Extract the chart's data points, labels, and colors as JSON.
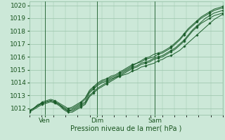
{
  "bg_color": "#cce8d8",
  "grid_color": "#99c4aa",
  "line_color": "#1a5c2a",
  "marker_color": "#1a5c2a",
  "xlabel": "Pression niveau de la mer( hPa )",
  "xlabel_color": "#1a5520",
  "tick_color": "#1a5520",
  "ylim": [
    1011.5,
    1020.3
  ],
  "yticks": [
    1012,
    1013,
    1014,
    1015,
    1016,
    1017,
    1018,
    1019,
    1020
  ],
  "xtick_labels": [
    "Ven",
    "Dim",
    "Sam"
  ],
  "xtick_positions": [
    0.08,
    0.35,
    0.65
  ],
  "vline_positions": [
    0.08,
    0.35,
    0.65
  ],
  "series": [
    [
      1011.8,
      1012.0,
      1012.2,
      1012.4,
      1012.5,
      1012.6,
      1012.5,
      1012.3,
      1012.0,
      1011.8,
      1011.9,
      1012.1,
      1012.3,
      1012.5,
      1013.2,
      1013.5,
      1013.8,
      1014.0,
      1014.1,
      1014.3,
      1014.4,
      1014.5,
      1014.6,
      1014.7,
      1014.9,
      1015.0,
      1015.2,
      1015.3,
      1015.4,
      1015.5,
      1015.7,
      1015.8,
      1016.0,
      1016.1,
      1016.3,
      1016.5,
      1016.8,
      1017.1,
      1017.4,
      1017.7,
      1018.0,
      1018.3,
      1018.6,
      1018.9,
      1019.1,
      1019.3
    ],
    [
      1011.8,
      1012.0,
      1012.3,
      1012.4,
      1012.5,
      1012.6,
      1012.5,
      1012.3,
      1012.0,
      1011.8,
      1011.8,
      1012.0,
      1012.2,
      1012.4,
      1013.0,
      1013.3,
      1013.6,
      1013.8,
      1014.0,
      1014.2,
      1014.4,
      1014.6,
      1014.8,
      1015.0,
      1015.2,
      1015.3,
      1015.5,
      1015.6,
      1015.7,
      1015.9,
      1016.0,
      1016.1,
      1016.3,
      1016.5,
      1016.7,
      1017.0,
      1017.3,
      1017.7,
      1018.1,
      1018.4,
      1018.7,
      1019.0,
      1019.2,
      1019.4,
      1019.5,
      1019.6
    ],
    [
      1011.7,
      1011.9,
      1012.1,
      1012.3,
      1012.4,
      1012.5,
      1012.4,
      1012.2,
      1011.9,
      1011.7,
      1011.7,
      1011.9,
      1012.1,
      1012.3,
      1012.9,
      1013.2,
      1013.5,
      1013.7,
      1013.9,
      1014.1,
      1014.3,
      1014.5,
      1014.7,
      1014.9,
      1015.1,
      1015.2,
      1015.4,
      1015.5,
      1015.6,
      1015.8,
      1015.9,
      1016.0,
      1016.2,
      1016.4,
      1016.6,
      1016.9,
      1017.2,
      1017.6,
      1018.0,
      1018.3,
      1018.6,
      1018.8,
      1019.0,
      1019.2,
      1019.3,
      1019.4
    ],
    [
      1011.8,
      1012.0,
      1012.2,
      1012.4,
      1012.5,
      1012.6,
      1012.5,
      1012.3,
      1012.1,
      1011.9,
      1012.0,
      1012.2,
      1012.4,
      1012.7,
      1013.3,
      1013.6,
      1013.9,
      1014.1,
      1014.2,
      1014.4,
      1014.5,
      1014.7,
      1014.9,
      1015.1,
      1015.3,
      1015.5,
      1015.6,
      1015.8,
      1015.9,
      1016.0,
      1016.2,
      1016.3,
      1016.5,
      1016.7,
      1017.0,
      1017.3,
      1017.7,
      1018.1,
      1018.4,
      1018.7,
      1019.0,
      1019.2,
      1019.4,
      1019.6,
      1019.7,
      1019.8
    ],
    [
      1011.8,
      1012.0,
      1012.2,
      1012.5,
      1012.6,
      1012.7,
      1012.6,
      1012.4,
      1012.2,
      1012.0,
      1012.1,
      1012.3,
      1012.5,
      1012.8,
      1013.4,
      1013.7,
      1014.0,
      1014.2,
      1014.3,
      1014.5,
      1014.6,
      1014.8,
      1015.0,
      1015.2,
      1015.4,
      1015.5,
      1015.7,
      1015.9,
      1016.0,
      1016.2,
      1016.3,
      1016.4,
      1016.6,
      1016.8,
      1017.1,
      1017.4,
      1017.8,
      1018.2,
      1018.5,
      1018.8,
      1019.1,
      1019.3,
      1019.5,
      1019.7,
      1019.8,
      1019.9
    ]
  ]
}
